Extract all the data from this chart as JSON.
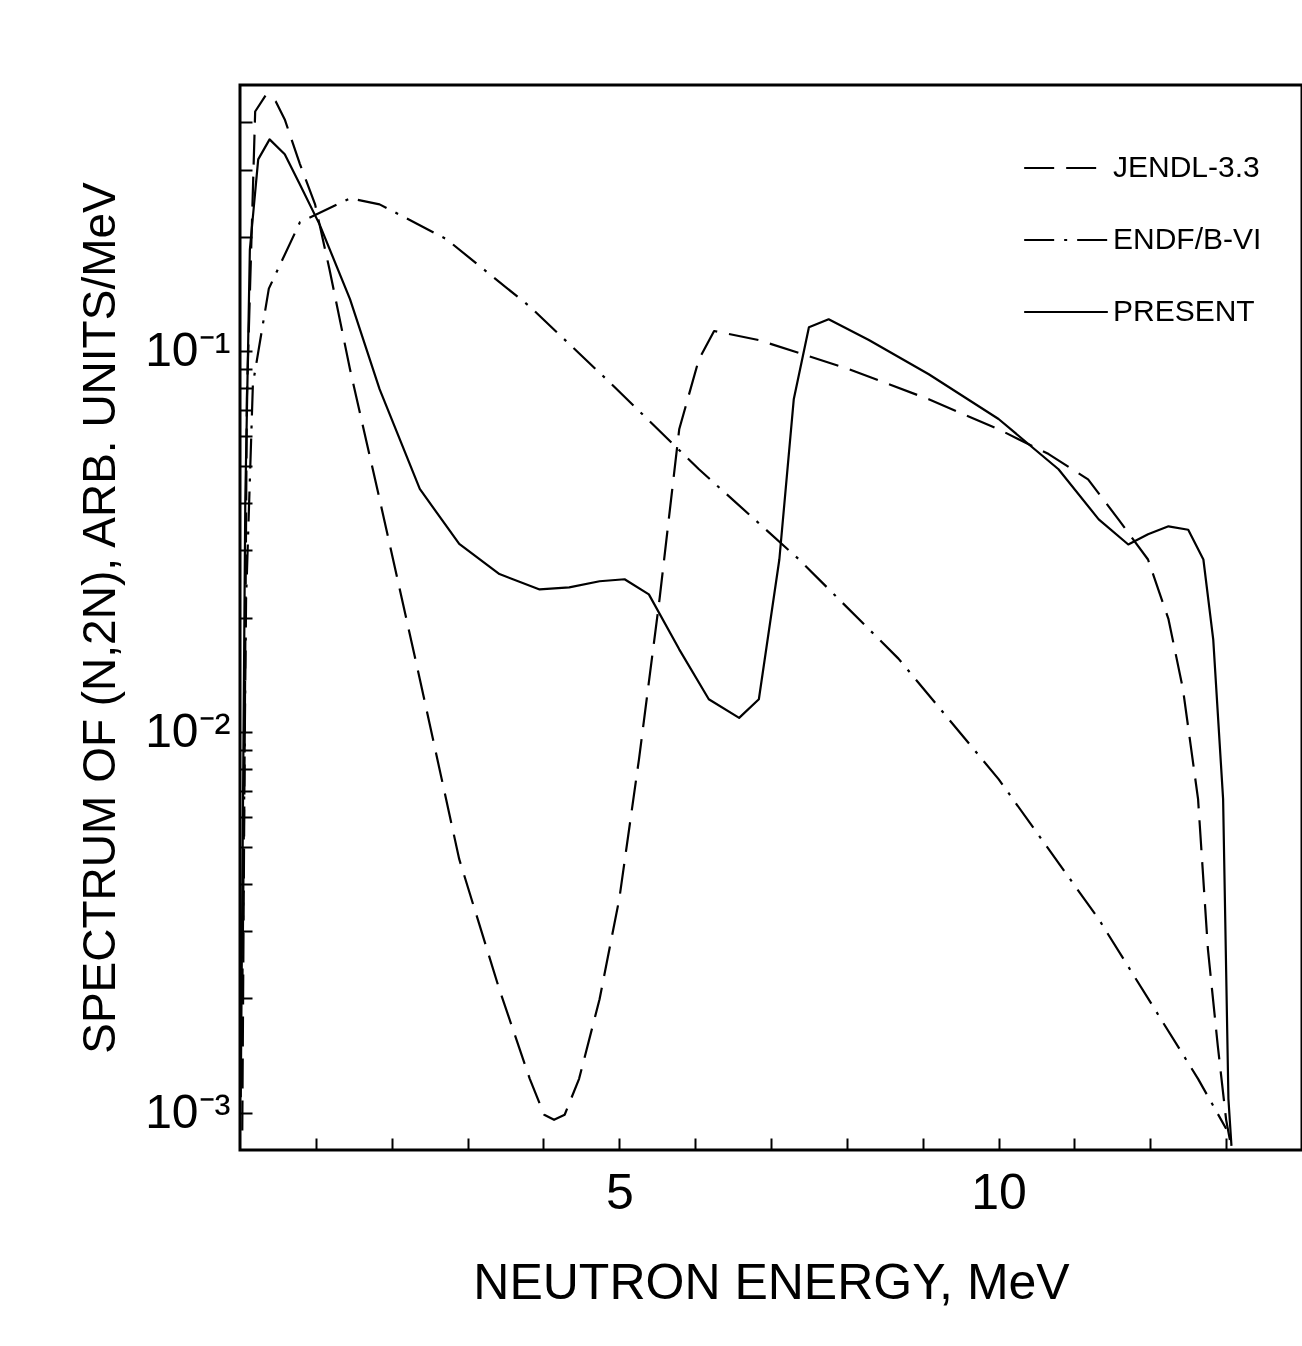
{
  "chart_data": {
    "type": "line",
    "xlabel": "NEUTRON ENERGY, MeV",
    "ylabel": "SPECTRUM OF (N,2N), ARB. UNITS/MeV",
    "log": "y",
    "grid": false,
    "legend": "top right",
    "xlim": [
      0,
      14
    ],
    "xticks": [
      {
        "value": 1,
        "label": null
      },
      {
        "value": 2,
        "label": null
      },
      {
        "value": 3,
        "label": null
      },
      {
        "value": 4,
        "label": null
      },
      5,
      {
        "value": 6,
        "label": null
      },
      {
        "value": 7,
        "label": null
      },
      {
        "value": 8,
        "label": null
      },
      {
        "value": 9,
        "label": null
      },
      10,
      {
        "value": 11,
        "label": null
      },
      {
        "value": 12,
        "label": null
      },
      {
        "value": 13,
        "label": null
      }
    ],
    "ylim": [
      0.0008,
      0.5
    ],
    "yticks": [
      {
        "value": 0.001,
        "label": "10⁻³"
      },
      {
        "value": 0.002,
        "label": null
      },
      {
        "value": 0.003,
        "label": null
      },
      {
        "value": 0.004,
        "label": null
      },
      {
        "value": 0.005,
        "label": null
      },
      {
        "value": 0.006,
        "label": null
      },
      {
        "value": 0.007,
        "label": null
      },
      {
        "value": 0.008,
        "label": null
      },
      {
        "value": 0.009,
        "label": null
      },
      {
        "value": 0.01,
        "label": "10⁻²"
      },
      {
        "value": 0.02,
        "label": null
      },
      {
        "value": 0.03,
        "label": null
      },
      {
        "value": 0.04,
        "label": null
      },
      {
        "value": 0.05,
        "label": null
      },
      {
        "value": 0.06,
        "label": null
      },
      {
        "value": 0.07,
        "label": null
      },
      {
        "value": 0.08,
        "label": null
      },
      {
        "value": 0.09,
        "label": null
      },
      {
        "value": 0.1,
        "label": "10⁻¹"
      },
      {
        "value": 0.2,
        "label": null
      },
      {
        "value": 0.3,
        "label": null
      },
      {
        "value": 0.4,
        "label": null
      }
    ],
    "series": [
      {
        "name": "JENDL-3.3",
        "color": "#000000",
        "line_style": "dashed",
        "x": [
          0.03,
          0.09,
          0.2,
          0.34,
          0.47,
          0.59,
          0.79,
          0.99,
          1.18,
          1.45,
          1.84,
          2.37,
          2.89,
          3.42,
          3.82,
          4.01,
          4.14,
          4.28,
          4.47,
          4.74,
          5.0,
          5.26,
          5.53,
          5.79,
          6.05,
          6.25,
          6.84,
          8.03,
          9.08,
          10.0,
          10.66,
          11.18,
          11.58,
          11.97,
          12.24,
          12.43,
          12.63,
          12.76,
          12.89,
          13.0,
          13.05
        ],
        "values": [
          0.0009,
          0.0748,
          0.426,
          0.47,
          0.453,
          0.406,
          0.31,
          0.243,
          0.164,
          0.0897,
          0.0409,
          0.0138,
          0.00464,
          0.00211,
          0.00123,
          0.00099,
          0.00096,
          0.00099,
          0.00123,
          0.00199,
          0.00365,
          0.0085,
          0.0223,
          0.0624,
          0.0953,
          0.113,
          0.107,
          0.0897,
          0.0748,
          0.0624,
          0.0537,
          0.0461,
          0.0362,
          0.0284,
          0.0198,
          0.013,
          0.00667,
          0.00269,
          0.0015,
          0.00096,
          0.00085
        ]
      },
      {
        "name": "ENDF/B-VI",
        "color": "#000000",
        "line_style": "dashdot",
        "x": [
          0.03,
          0.08,
          0.17,
          0.38,
          0.79,
          1.45,
          1.84,
          2.72,
          3.82,
          4.87,
          6.05,
          7.37,
          8.68,
          10.0,
          11.32,
          12.63,
          13.0
        ],
        "values": [
          0.002,
          0.0223,
          0.082,
          0.146,
          0.218,
          0.252,
          0.243,
          0.197,
          0.131,
          0.083,
          0.049,
          0.0284,
          0.0156,
          0.00753,
          0.00323,
          0.00123,
          0.00091
        ]
      },
      {
        "name": "PRESENT",
        "color": "#000000",
        "line_style": "solid",
        "x": [
          0.01,
          0.07,
          0.13,
          0.24,
          0.39,
          0.59,
          0.79,
          1.05,
          1.45,
          1.84,
          2.37,
          2.89,
          3.42,
          3.95,
          4.34,
          4.74,
          5.07,
          5.39,
          5.79,
          6.18,
          6.58,
          6.84,
          7.11,
          7.3,
          7.5,
          7.76,
          8.29,
          9.08,
          10.0,
          10.79,
          11.32,
          11.71,
          11.97,
          12.24,
          12.5,
          12.7,
          12.83,
          12.96,
          13.03,
          13.07
        ],
        "values": [
          0.0011,
          0.041,
          0.185,
          0.319,
          0.36,
          0.329,
          0.274,
          0.215,
          0.137,
          0.0795,
          0.0435,
          0.0312,
          0.026,
          0.0237,
          0.024,
          0.0249,
          0.0252,
          0.023,
          0.0165,
          0.0122,
          0.0109,
          0.0122,
          0.0284,
          0.0748,
          0.1156,
          0.1213,
          0.107,
          0.087,
          0.0664,
          0.049,
          0.0362,
          0.0311,
          0.0331,
          0.0347,
          0.034,
          0.0284,
          0.0175,
          0.00667,
          0.00109,
          0.00082
        ]
      }
    ]
  }
}
